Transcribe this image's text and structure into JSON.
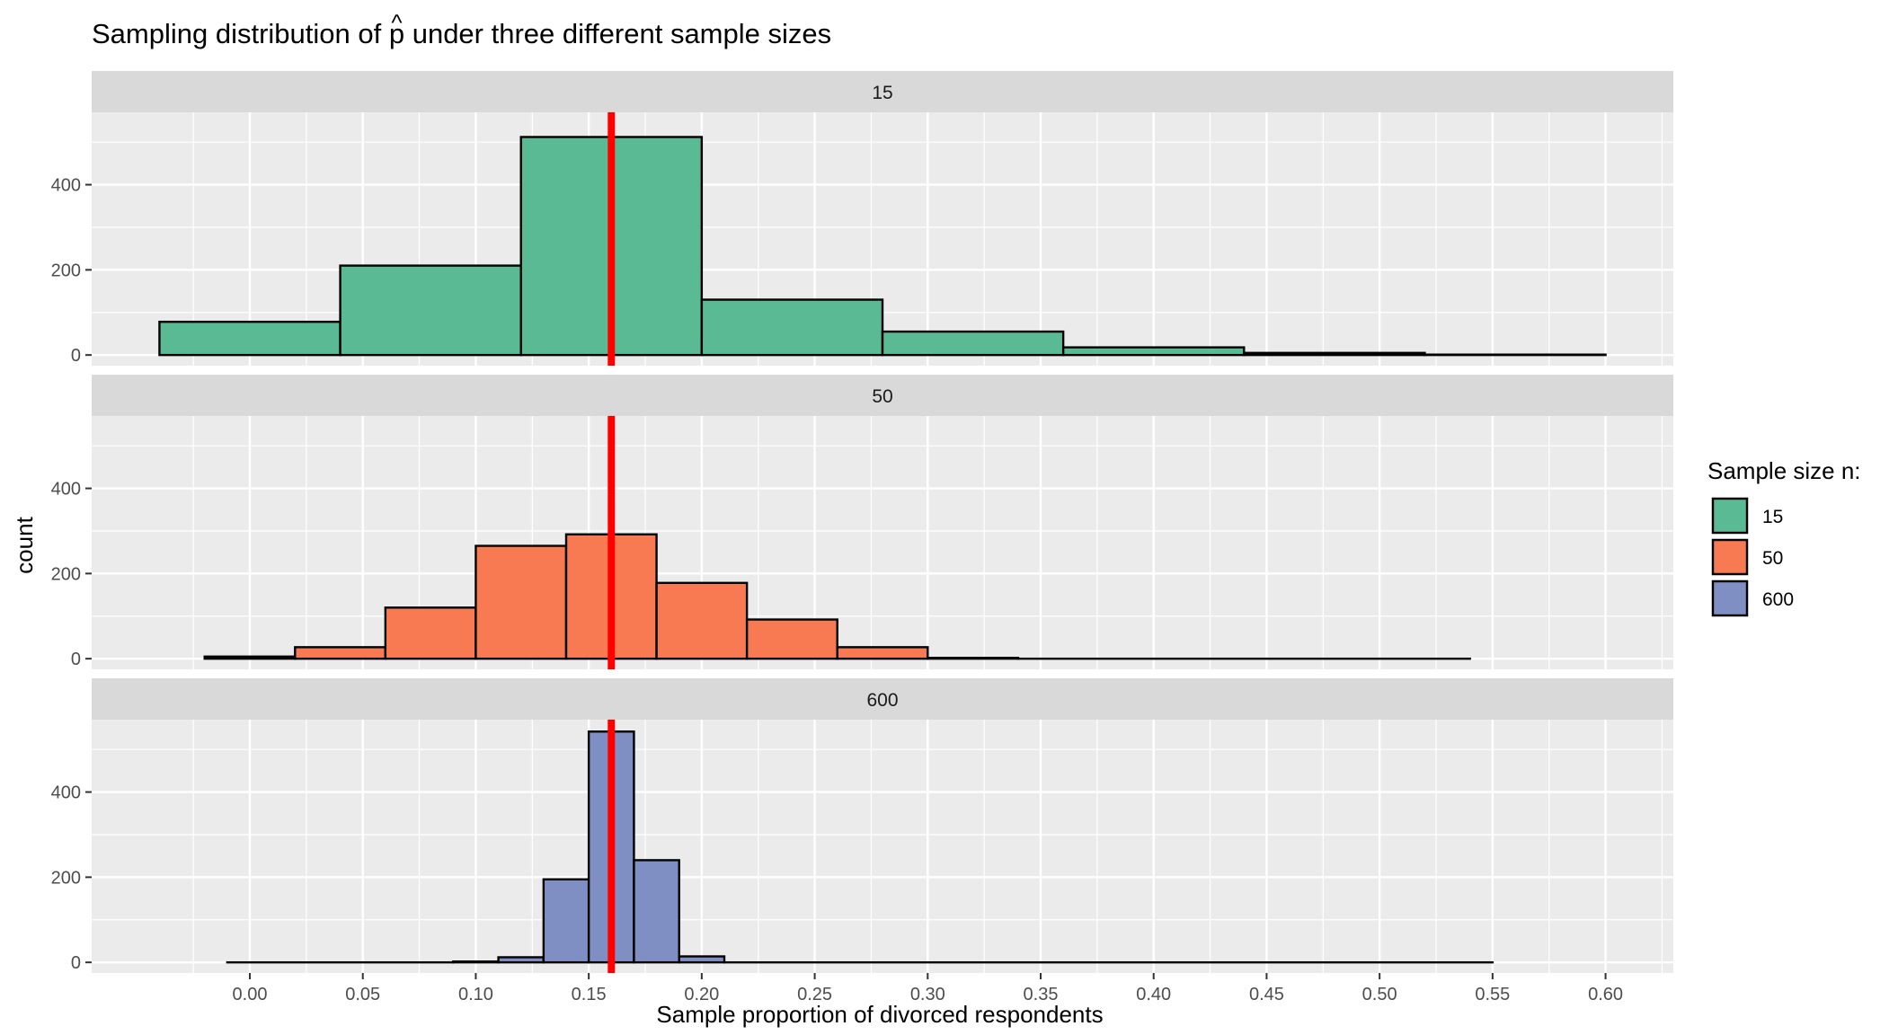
{
  "chart_data": {
    "type": "bar",
    "title_prefix": "Sampling distribution of ",
    "title_symbol": "p",
    "title_hat": "^",
    "title_suffix": " under three different sample sizes",
    "xlabel": "Sample proportion of divorced respondents",
    "ylabel": "count",
    "xlim": [
      -0.07,
      0.63
    ],
    "x_ticks": [
      "0.00",
      "0.05",
      "0.10",
      "0.15",
      "0.20",
      "0.25",
      "0.30",
      "0.35",
      "0.40",
      "0.45",
      "0.50",
      "0.55",
      "0.60"
    ],
    "y_ticks": [
      "0",
      "200",
      "400"
    ],
    "ylim": [
      -25,
      570
    ],
    "reference_line": {
      "x": 0.16,
      "color": "#ff0000"
    },
    "legend": {
      "title": "Sample size n:",
      "position": "right"
    },
    "grid": true,
    "panels": [
      {
        "label": "15",
        "color": "#59BA94",
        "bins": [
          {
            "x0": -0.04,
            "x1": 0.04,
            "count": 78
          },
          {
            "x0": 0.04,
            "x1": 0.12,
            "count": 210
          },
          {
            "x0": 0.12,
            "x1": 0.2,
            "count": 512
          },
          {
            "x0": 0.2,
            "x1": 0.28,
            "count": 130
          },
          {
            "x0": 0.28,
            "x1": 0.36,
            "count": 55
          },
          {
            "x0": 0.36,
            "x1": 0.44,
            "count": 18
          },
          {
            "x0": 0.44,
            "x1": 0.52,
            "count": 5
          },
          {
            "x0": 0.52,
            "x1": 0.6,
            "count": 1
          }
        ]
      },
      {
        "label": "50",
        "color": "#F87A53",
        "bins": [
          {
            "x0": -0.02,
            "x1": 0.02,
            "count": 5
          },
          {
            "x0": 0.02,
            "x1": 0.06,
            "count": 27
          },
          {
            "x0": 0.06,
            "x1": 0.1,
            "count": 120
          },
          {
            "x0": 0.1,
            "x1": 0.14,
            "count": 265
          },
          {
            "x0": 0.14,
            "x1": 0.18,
            "count": 292
          },
          {
            "x0": 0.18,
            "x1": 0.22,
            "count": 178
          },
          {
            "x0": 0.22,
            "x1": 0.26,
            "count": 92
          },
          {
            "x0": 0.26,
            "x1": 0.3,
            "count": 27
          },
          {
            "x0": 0.3,
            "x1": 0.34,
            "count": 2
          },
          {
            "x0": 0.34,
            "x1": 0.54,
            "count": 0
          }
        ]
      },
      {
        "label": "600",
        "color": "#7F8FC4",
        "bins": [
          {
            "x0": -0.01,
            "x1": 0.09,
            "count": 0
          },
          {
            "x0": 0.09,
            "x1": 0.11,
            "count": 2
          },
          {
            "x0": 0.11,
            "x1": 0.13,
            "count": 12
          },
          {
            "x0": 0.13,
            "x1": 0.15,
            "count": 195
          },
          {
            "x0": 0.15,
            "x1": 0.17,
            "count": 542
          },
          {
            "x0": 0.17,
            "x1": 0.19,
            "count": 240
          },
          {
            "x0": 0.19,
            "x1": 0.21,
            "count": 14
          },
          {
            "x0": 0.21,
            "x1": 0.55,
            "count": 0
          }
        ]
      }
    ]
  }
}
